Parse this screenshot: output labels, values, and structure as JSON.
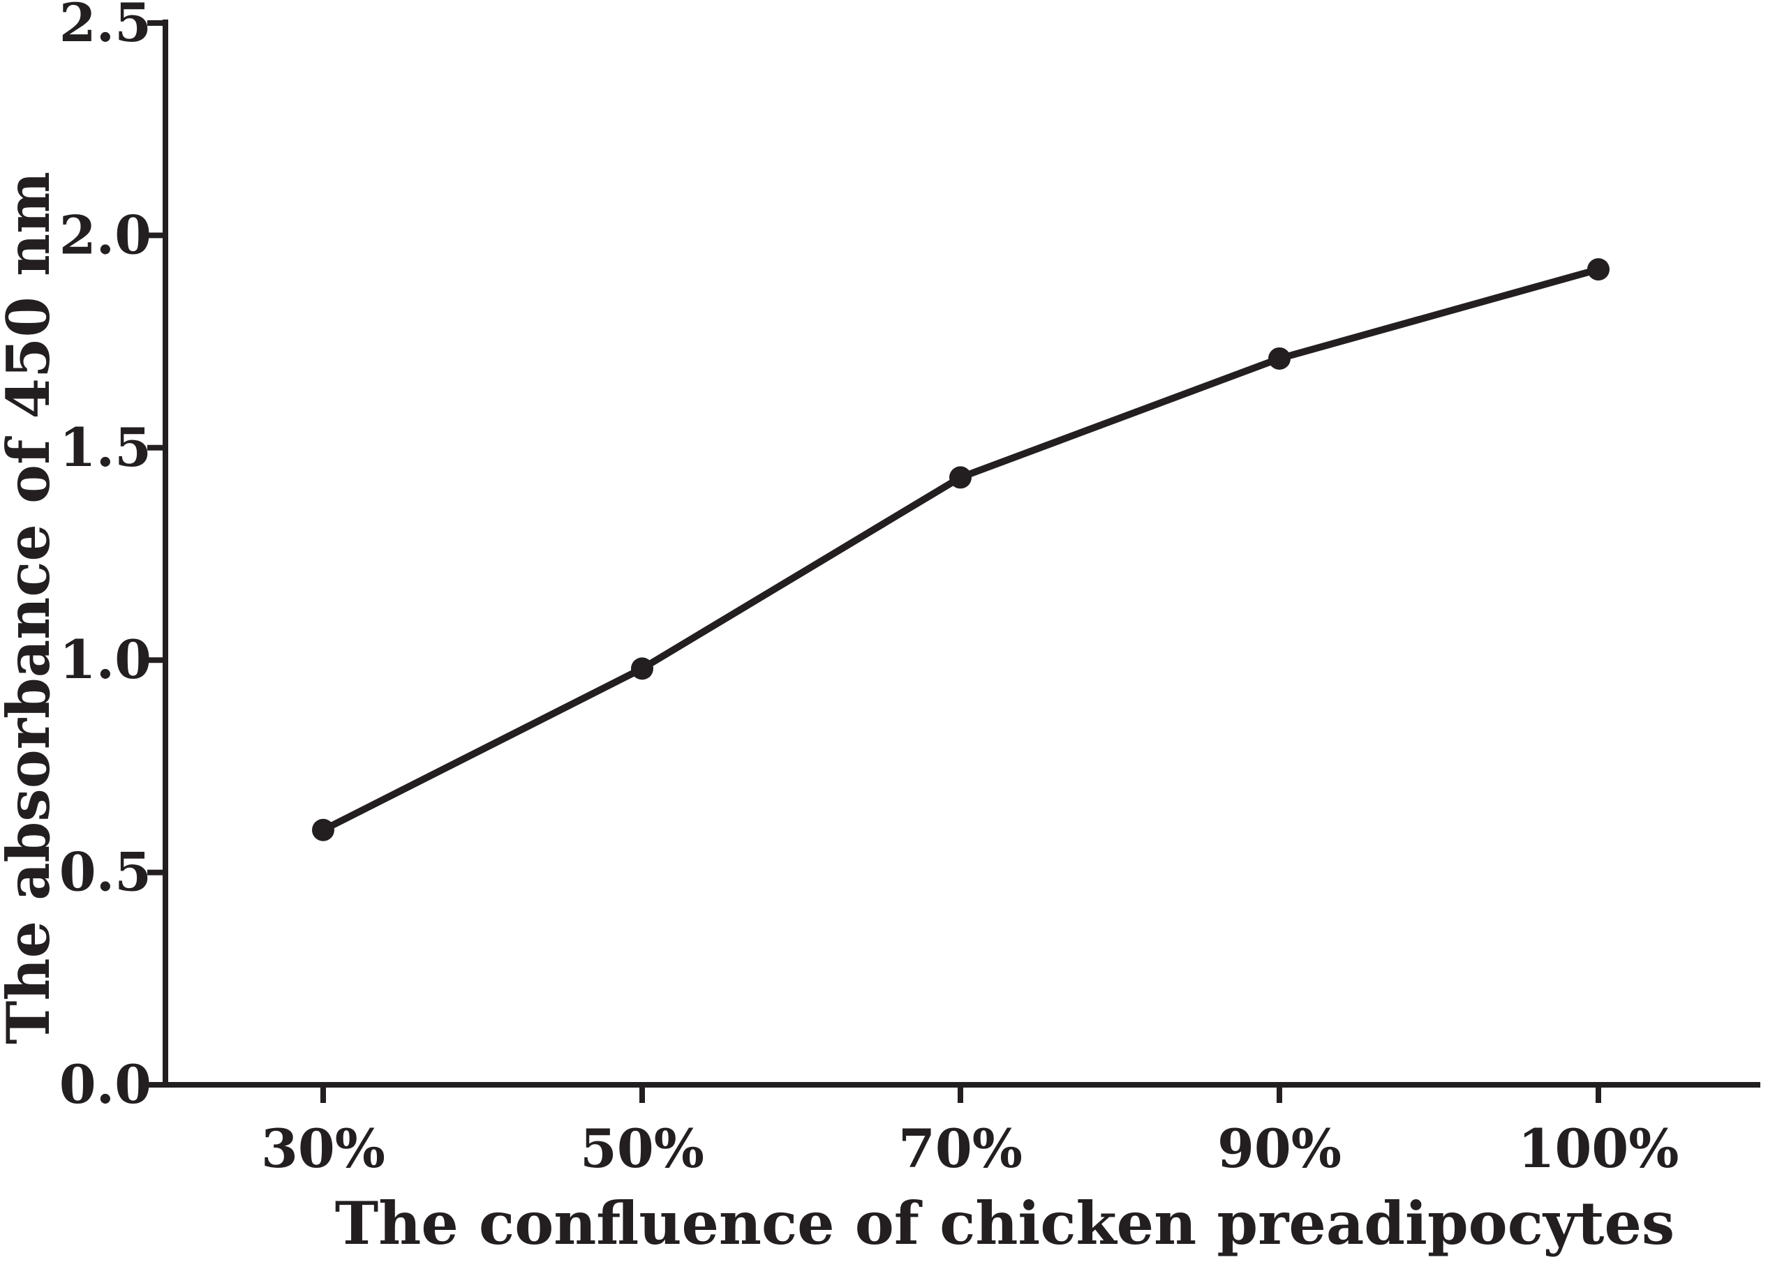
{
  "chart_data": {
    "type": "line",
    "categories": [
      "30%",
      "50%",
      "70%",
      "90%",
      "100%"
    ],
    "series": [
      {
        "values": [
          0.6,
          0.98,
          1.43,
          1.71,
          1.92
        ]
      }
    ],
    "xlabel": "The confluence of chicken preadipocytes",
    "ylabel": "The absorbance of 450 nm",
    "ylim": [
      0,
      2.5
    ],
    "yticks": [
      "0.0",
      "0.5",
      "1.0",
      "1.5",
      "2.0",
      "2.5"
    ],
    "grid": false,
    "legend": "none",
    "colors": {
      "line": "#231f20",
      "axis": "#231f20"
    }
  }
}
